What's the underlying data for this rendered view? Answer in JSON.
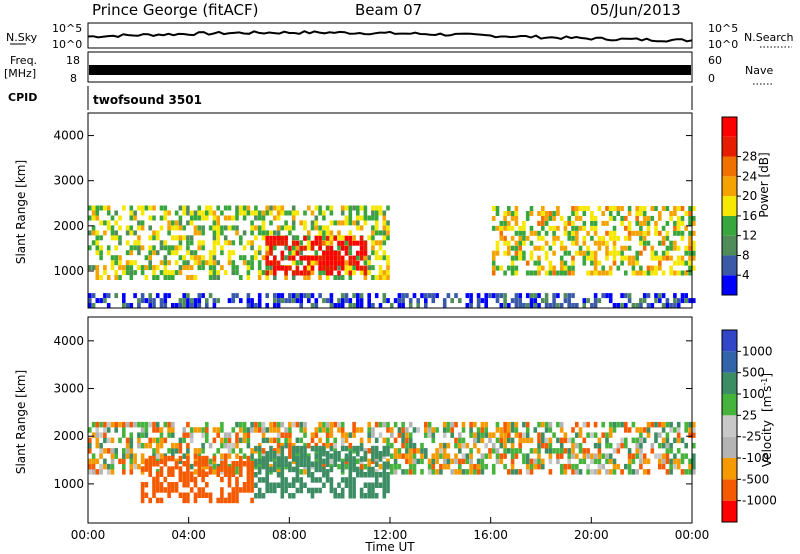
{
  "header": {
    "station": "Prince George (fitACF)",
    "beam": "Beam 07",
    "date": "05/Jun/2013"
  },
  "strips": {
    "nsky_label": "N.Sky",
    "nsky_ticks": [
      "10^5",
      "10^0"
    ],
    "nsearch_label": "N.Search",
    "nsearch_ticks": [
      "10^5",
      "10^0"
    ],
    "freq_label": "Freq.",
    "freq_unit": "[MHz]",
    "freq_ticks": [
      "18",
      "8"
    ],
    "nave_label": "Nave",
    "nave_ticks": [
      "60",
      "0"
    ],
    "cpid_label": "CPID",
    "cpid_value": "twofsound 3501"
  },
  "colors": {
    "power": [
      "#0000ff",
      "#3a5aa8",
      "#4f8c5a",
      "#37a63c",
      "#f6e800",
      "#f5a300",
      "#f07000",
      "#e61e00",
      "#ff0000"
    ],
    "velocity": [
      "#ff0000",
      "#f55a00",
      "#f59b00",
      "#b4b4b4",
      "#c8c8c8",
      "#46b43c",
      "#3c8c64",
      "#3264aa",
      "#3246c8"
    ]
  },
  "chart_data": [
    {
      "type": "heatmap",
      "name": "power-panel",
      "ylabel": "Slant Range [km]",
      "ylim": [
        180,
        4500
      ],
      "yticks": [
        "1000",
        "2000",
        "3000",
        "4000"
      ],
      "xlim": [
        "00:00",
        "24:00"
      ],
      "colorbar_label": "Power [dB]",
      "colorbar_ticks": [
        "4",
        "8",
        "12",
        "16",
        "20",
        "24",
        "28"
      ],
      "features": [
        {
          "region": "main echo band",
          "time": [
            "00:00",
            "12:00"
          ],
          "range_km": [
            800,
            2400
          ],
          "power_db": 14
        },
        {
          "region": "strongest echoes",
          "time": [
            "07:00",
            "11:30"
          ],
          "range_km": [
            900,
            1700
          ],
          "power_db": 28
        },
        {
          "region": "evening band",
          "time": [
            "16:30",
            "24:00"
          ],
          "range_km": [
            900,
            2400
          ],
          "power_db": 16
        },
        {
          "region": "near-range noise",
          "time": [
            "00:00",
            "24:00"
          ],
          "range_km": [
            180,
            500
          ],
          "power_db": 4
        }
      ]
    },
    {
      "type": "heatmap",
      "name": "velocity-panel",
      "ylabel": "Slant Range [km]",
      "ylim": [
        180,
        4500
      ],
      "yticks": [
        "1000",
        "2000",
        "3000",
        "4000"
      ],
      "xlim": [
        "00:00",
        "24:00"
      ],
      "xlabel": "Time UT",
      "xticks": [
        "00:00",
        "04:00",
        "08:00",
        "12:00",
        "16:00",
        "20:00",
        "00:00"
      ],
      "colorbar_label": "Velocity",
      "colorbar_unit": "[m s^-1]",
      "colorbar_ticks": [
        "1000",
        "500",
        "100",
        "25",
        "-25",
        "-100",
        "-500",
        "-1000"
      ],
      "features": [
        {
          "region": "ground scatter band",
          "time": [
            "00:00",
            "24:00"
          ],
          "range_km": [
            1200,
            2300
          ],
          "velocity_ms": 0
        },
        {
          "region": "receding flow",
          "time": [
            "02:00",
            "06:30"
          ],
          "range_km": [
            600,
            1500
          ],
          "velocity_ms": -300
        },
        {
          "region": "approaching flow",
          "time": [
            "06:30",
            "12:00"
          ],
          "range_km": [
            700,
            1800
          ],
          "velocity_ms": 300
        }
      ]
    }
  ]
}
